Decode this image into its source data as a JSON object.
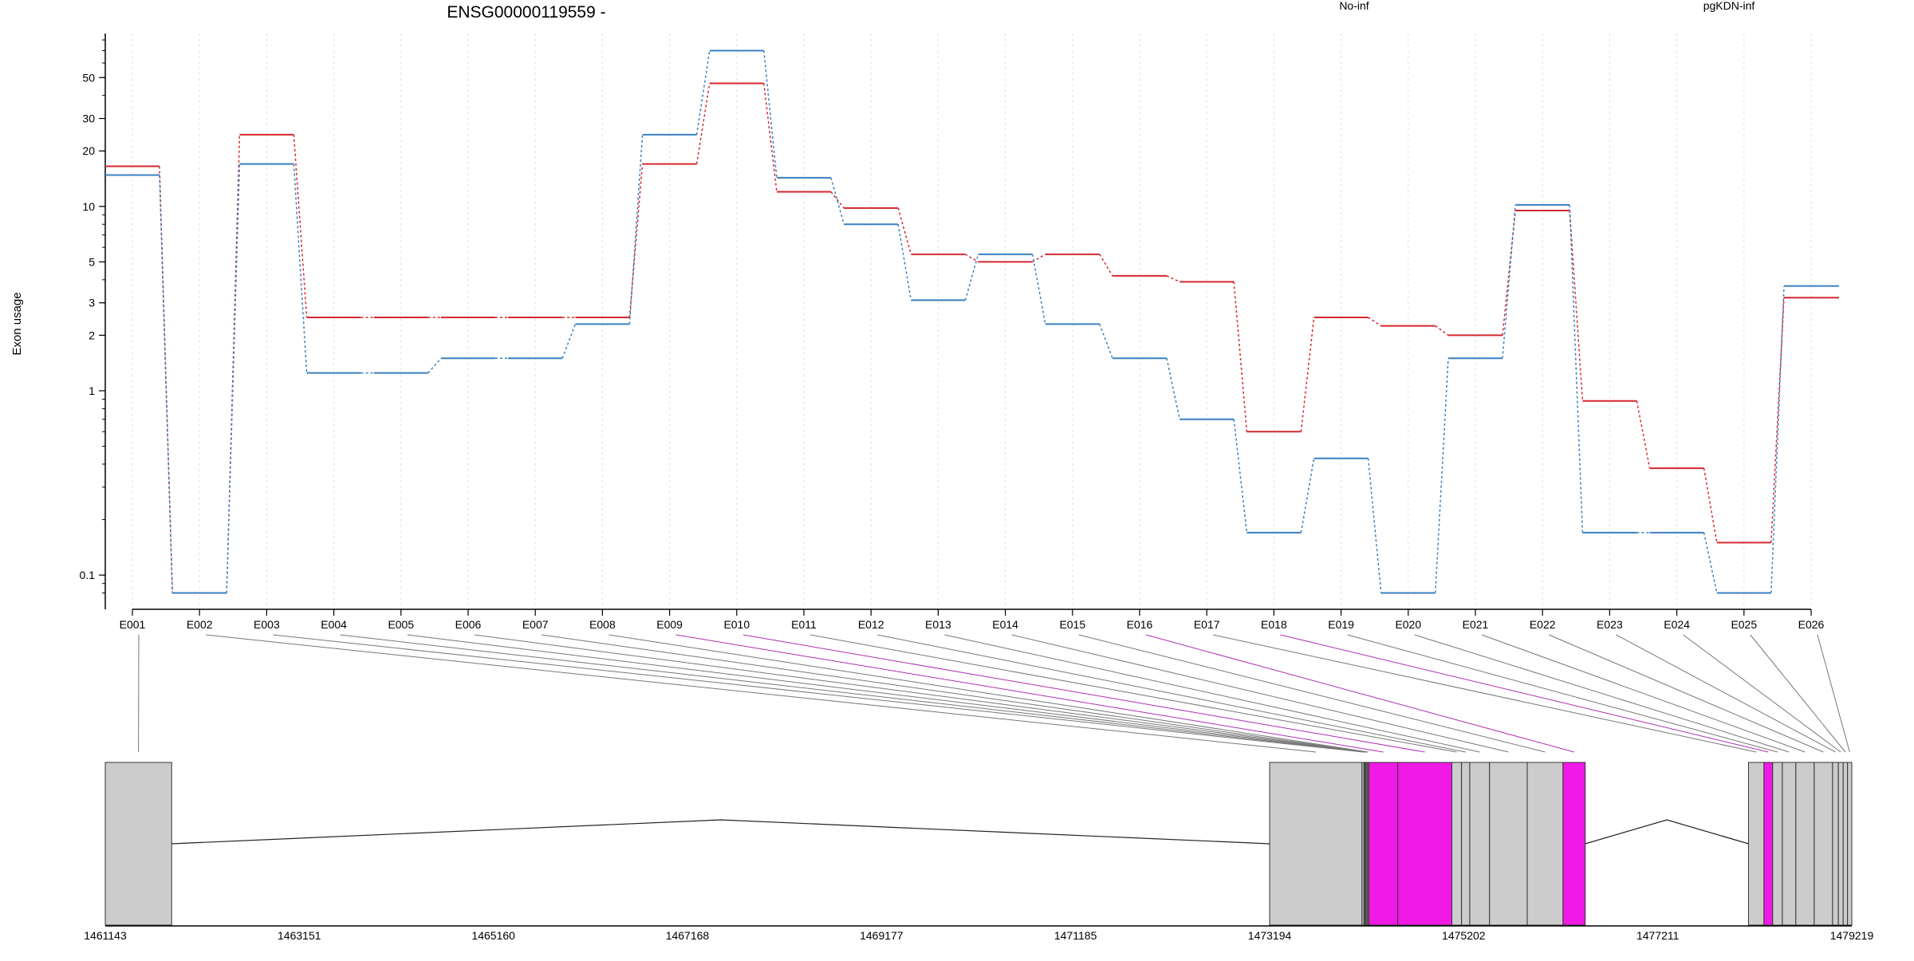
{
  "chart_data": {
    "type": "line",
    "title": "ENSG00000119559 -",
    "ylabel": "Exon usage",
    "yscale": "log",
    "ylim": [
      0.075,
      85
    ],
    "yticks": [
      {
        "label": "0.1",
        "value": 0.1
      },
      {
        "label": "1",
        "value": 1
      },
      {
        "label": "2",
        "value": 2
      },
      {
        "label": "3",
        "value": 3
      },
      {
        "label": "5",
        "value": 5
      },
      {
        "label": "10",
        "value": 10
      },
      {
        "label": "20",
        "value": 20
      },
      {
        "label": "30",
        "value": 30
      },
      {
        "label": "50",
        "value": 50
      }
    ],
    "grid": "vertical dotted",
    "legend_position": "top",
    "categories": [
      "E001",
      "E002",
      "E003",
      "E004",
      "E005",
      "E006",
      "E007",
      "E008",
      "E009",
      "E010",
      "E011",
      "E012",
      "E013",
      "E014",
      "E015",
      "E016",
      "E017",
      "E018",
      "E019",
      "E020",
      "E021",
      "E022",
      "E023",
      "E024",
      "E025",
      "E026"
    ],
    "series": [
      {
        "name": "No-inf",
        "color": "#d6272e",
        "values": [
          16.5,
          0.08,
          24.5,
          2.5,
          2.5,
          2.5,
          2.5,
          2.5,
          17,
          46.5,
          12,
          9.8,
          5.5,
          5,
          5.5,
          4.2,
          3.9,
          0.6,
          2.5,
          2.25,
          2,
          9.5,
          0.88,
          0.38,
          0.15,
          3.2
        ]
      },
      {
        "name": "pgKDN-inf",
        "color": "#3a7fc0",
        "values": [
          14.8,
          0.08,
          17,
          1.25,
          1.25,
          1.5,
          1.5,
          2.3,
          24.5,
          70,
          14.3,
          8,
          3.1,
          5.5,
          2.3,
          1.5,
          0.7,
          0.17,
          0.43,
          0.08,
          1.5,
          10.2,
          0.17,
          0.17,
          0.08,
          3.7
        ]
      }
    ],
    "gene_model": {
      "xlim": [
        1461143,
        1479219
      ],
      "ticks": [
        {
          "label": "1461143",
          "value": 1461143
        },
        {
          "label": "1463151",
          "value": 1463151
        },
        {
          "label": "1465160",
          "value": 1465160
        },
        {
          "label": "1467168",
          "value": 1467168
        },
        {
          "label": "1469177",
          "value": 1469177
        },
        {
          "label": "1471185",
          "value": 1471185
        },
        {
          "label": "1473194",
          "value": 1473194
        },
        {
          "label": "1475202",
          "value": 1475202
        },
        {
          "label": "1477211",
          "value": 1477211
        },
        {
          "label": "1479219",
          "value": 1479219
        }
      ],
      "exon_fill": "#cccccc",
      "highlight_fill": "#f01ae6",
      "exons": [
        {
          "id": "E001",
          "start": 1461143,
          "end": 1461830,
          "highlight": false
        },
        {
          "id": "E002",
          "start": 1473194,
          "end": 1474150,
          "highlight": false
        },
        {
          "id": "E003",
          "start": 1474150,
          "end": 1474170,
          "highlight": false
        },
        {
          "id": "E004",
          "start": 1474170,
          "end": 1474180,
          "highlight": false
        },
        {
          "id": "E005",
          "start": 1474180,
          "end": 1474190,
          "highlight": false
        },
        {
          "id": "E006",
          "start": 1474190,
          "end": 1474200,
          "highlight": false
        },
        {
          "id": "E007",
          "start": 1474200,
          "end": 1474210,
          "highlight": false
        },
        {
          "id": "E008",
          "start": 1474210,
          "end": 1474220,
          "highlight": false
        },
        {
          "id": "E009",
          "start": 1474220,
          "end": 1474520,
          "highlight": true
        },
        {
          "id": "E010",
          "start": 1474520,
          "end": 1475080,
          "highlight": true
        },
        {
          "id": "E011",
          "start": 1475080,
          "end": 1475180,
          "highlight": false
        },
        {
          "id": "E012",
          "start": 1475180,
          "end": 1475265,
          "highlight": false
        },
        {
          "id": "E013",
          "start": 1475265,
          "end": 1475470,
          "highlight": false
        },
        {
          "id": "E014",
          "start": 1475470,
          "end": 1475860,
          "highlight": false
        },
        {
          "id": "E015",
          "start": 1475860,
          "end": 1476230,
          "highlight": false
        },
        {
          "id": "E016",
          "start": 1476230,
          "end": 1476460,
          "highlight": true
        },
        {
          "id": "E017",
          "start": 1478150,
          "end": 1478310,
          "highlight": false
        },
        {
          "id": "E018",
          "start": 1478310,
          "end": 1478400,
          "highlight": true
        },
        {
          "id": "E019",
          "start": 1478400,
          "end": 1478500,
          "highlight": false
        },
        {
          "id": "E020",
          "start": 1478500,
          "end": 1478640,
          "highlight": false
        },
        {
          "id": "E021",
          "start": 1478640,
          "end": 1478830,
          "highlight": false
        },
        {
          "id": "E022",
          "start": 1478830,
          "end": 1479020,
          "highlight": false
        },
        {
          "id": "E023",
          "start": 1479020,
          "end": 1479080,
          "highlight": false
        },
        {
          "id": "E024",
          "start": 1479080,
          "end": 1479130,
          "highlight": false
        },
        {
          "id": "E025",
          "start": 1479130,
          "end": 1479175,
          "highlight": false
        },
        {
          "id": "E026",
          "start": 1479175,
          "end": 1479219,
          "highlight": false
        }
      ]
    }
  }
}
